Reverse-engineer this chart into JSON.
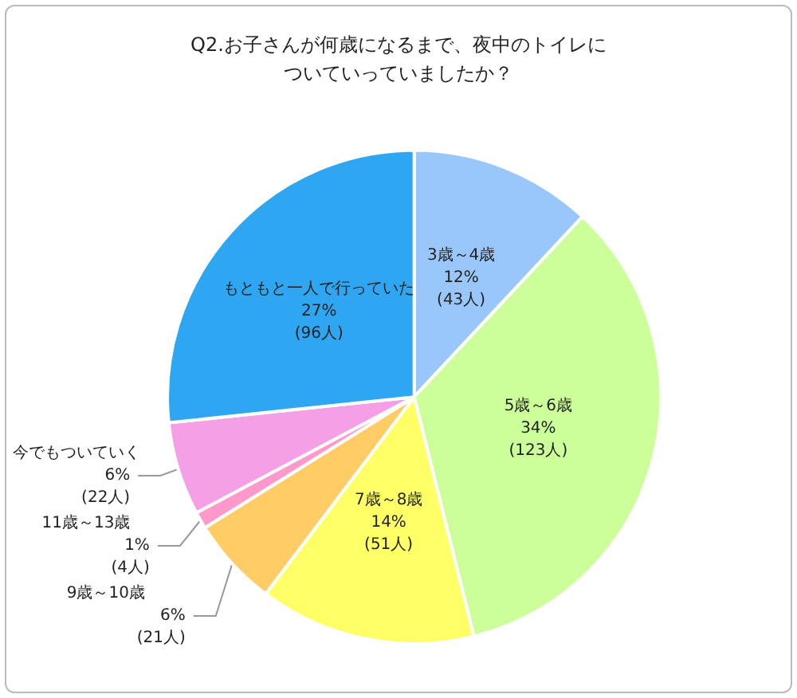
{
  "chart_data": {
    "type": "pie",
    "title": "Q2.お子さんが何歳になるまで、夜中のトイレについていっていましたか？",
    "categories": [
      "3歳～4歳",
      "5歳～6歳",
      "7歳～8歳",
      "9歳～10歳",
      "11歳～13歳",
      "今でもついていく",
      "もともと一人で行っていた"
    ],
    "values": [
      43,
      123,
      51,
      21,
      4,
      22,
      96
    ],
    "value_labels": [
      "12%\n(43人)",
      "34%\n(123人)",
      "14%\n(51人)",
      "6%\n(21人)",
      "1%\n(4人)",
      "6%\n(22人)",
      "27%\n(96人)"
    ],
    "colors": [
      "#99c7fb",
      "#ccff99",
      "#ffff66",
      "#ffcc66",
      "#ff99cc",
      "#f59fe6",
      "#2ea6f2"
    ],
    "legend": false
  }
}
